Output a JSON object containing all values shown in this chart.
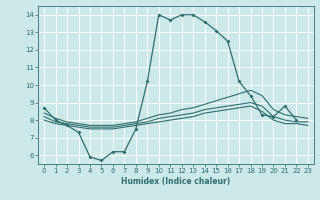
{
  "xlabel": "Humidex (Indice chaleur)",
  "bg_color": "#cce8e8",
  "line_color": "#2e6e6e",
  "xlim": [
    -0.5,
    23.5
  ],
  "ylim": [
    5.5,
    14.5
  ],
  "yticks": [
    6,
    7,
    8,
    9,
    10,
    11,
    12,
    13,
    14
  ],
  "xticks": [
    0,
    1,
    2,
    3,
    4,
    5,
    6,
    7,
    8,
    9,
    10,
    11,
    12,
    13,
    14,
    15,
    16,
    17,
    18,
    19,
    20,
    21,
    22,
    23
  ],
  "line1_x": [
    0,
    1,
    2,
    3,
    4,
    5,
    6,
    7,
    8,
    9,
    10,
    11,
    12,
    13,
    14,
    15,
    16,
    17,
    18,
    19,
    20,
    21,
    22
  ],
  "line1_y": [
    8.7,
    8.0,
    7.7,
    7.3,
    5.9,
    5.7,
    6.2,
    6.2,
    7.5,
    10.2,
    14.0,
    13.7,
    14.0,
    14.0,
    13.6,
    13.1,
    12.5,
    10.2,
    9.4,
    8.3,
    8.2,
    8.8,
    8.0
  ],
  "line2_x": [
    0,
    1,
    2,
    3,
    4,
    5,
    6,
    7,
    8,
    9,
    10,
    11,
    12,
    13,
    14,
    15,
    16,
    17,
    18,
    19,
    20,
    21,
    22,
    23
  ],
  "line2_y": [
    8.4,
    8.1,
    7.9,
    7.8,
    7.7,
    7.7,
    7.7,
    7.8,
    7.9,
    8.1,
    8.3,
    8.4,
    8.6,
    8.7,
    8.9,
    9.1,
    9.3,
    9.5,
    9.7,
    9.4,
    8.6,
    8.3,
    8.2,
    8.1
  ],
  "line3_x": [
    0,
    1,
    2,
    3,
    4,
    5,
    6,
    7,
    8,
    9,
    10,
    11,
    12,
    13,
    14,
    15,
    16,
    17,
    18,
    19,
    20,
    21,
    22,
    23
  ],
  "line3_y": [
    8.2,
    7.9,
    7.8,
    7.7,
    7.6,
    7.6,
    7.6,
    7.7,
    7.8,
    7.9,
    8.1,
    8.2,
    8.3,
    8.4,
    8.6,
    8.7,
    8.8,
    8.9,
    9.0,
    8.8,
    8.2,
    8.0,
    7.9,
    7.9
  ],
  "line4_x": [
    0,
    1,
    2,
    3,
    4,
    5,
    6,
    7,
    8,
    9,
    10,
    11,
    12,
    13,
    14,
    15,
    16,
    17,
    18,
    19,
    20,
    21,
    22,
    23
  ],
  "line4_y": [
    8.0,
    7.8,
    7.7,
    7.6,
    7.5,
    7.5,
    7.5,
    7.6,
    7.7,
    7.8,
    7.9,
    8.0,
    8.1,
    8.2,
    8.4,
    8.5,
    8.6,
    8.7,
    8.8,
    8.5,
    8.0,
    7.8,
    7.8,
    7.7
  ]
}
